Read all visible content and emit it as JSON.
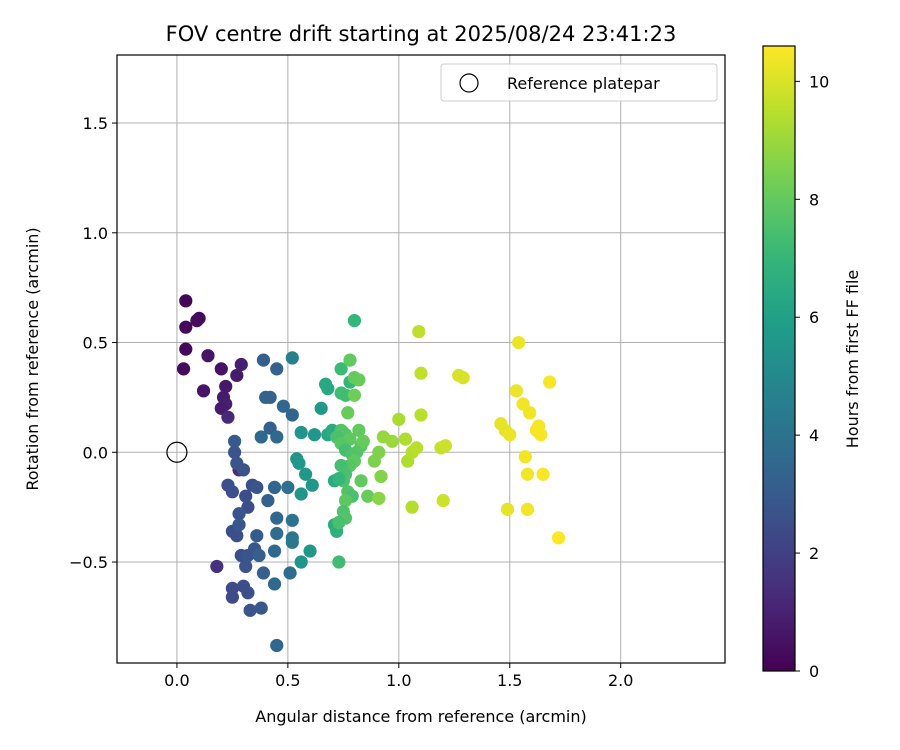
{
  "chart_data": {
    "type": "scatter",
    "title": "FOV centre drift starting at 2025/08/24 23:41:23",
    "xlabel": "Angular distance from reference (arcmin)",
    "ylabel": "Rotation from reference (arcmin)",
    "xlim": [
      -0.27,
      2.47
    ],
    "ylim": [
      -0.96,
      1.81
    ],
    "x_ticks": [
      0.0,
      0.5,
      1.0,
      1.5,
      2.0
    ],
    "x_tick_labels": [
      "0.0",
      "0.5",
      "1.0",
      "1.5",
      "2.0"
    ],
    "y_ticks": [
      -0.5,
      0.0,
      0.5,
      1.0,
      1.5
    ],
    "y_tick_labels": [
      "−0.5",
      "0.0",
      "0.5",
      "1.0",
      "1.5"
    ],
    "grid": true,
    "legend": {
      "placement": "top-right",
      "entries": [
        {
          "label": "Reference platepar",
          "marker": "open-circle"
        }
      ]
    },
    "reference_point": {
      "x": 0.0,
      "y": 0.0
    },
    "colorbar": {
      "label": "Hours from first FF file",
      "colormap": "viridis",
      "range": [
        0,
        10.6
      ],
      "ticks": [
        0,
        2,
        4,
        6,
        8,
        10
      ],
      "tick_labels": [
        "0",
        "2",
        "4",
        "6",
        "8",
        "10"
      ]
    },
    "points": [
      [
        0.04,
        0.69,
        0.1
      ],
      [
        0.04,
        0.57,
        0.2
      ],
      [
        0.1,
        0.61,
        0.3
      ],
      [
        0.09,
        0.6,
        0.3
      ],
      [
        0.04,
        0.47,
        0.2
      ],
      [
        0.03,
        0.38,
        0.3
      ],
      [
        0.14,
        0.44,
        0.6
      ],
      [
        0.2,
        0.38,
        0.5
      ],
      [
        0.12,
        0.28,
        0.6
      ],
      [
        0.22,
        0.3,
        0.7
      ],
      [
        0.27,
        0.35,
        0.8
      ],
      [
        0.29,
        0.4,
        0.9
      ],
      [
        0.21,
        0.25,
        0.8
      ],
      [
        0.22,
        0.22,
        0.9
      ],
      [
        0.2,
        0.2,
        0.8
      ],
      [
        0.23,
        0.16,
        1.2
      ],
      [
        0.28,
        -0.08,
        1.3
      ],
      [
        0.18,
        -0.52,
        1.5
      ],
      [
        0.39,
        0.42,
        3.2
      ],
      [
        0.45,
        0.38,
        3.3
      ],
      [
        0.4,
        0.25,
        3.4
      ],
      [
        0.42,
        0.25,
        3.3
      ],
      [
        0.52,
        0.17,
        3.4
      ],
      [
        0.48,
        0.21,
        3.5
      ],
      [
        0.42,
        0.11,
        3.2
      ],
      [
        0.45,
        0.07,
        3.6
      ],
      [
        0.38,
        0.07,
        3.6
      ],
      [
        0.26,
        0.05,
        3.0
      ],
      [
        0.26,
        0.0,
        2.8
      ],
      [
        0.27,
        -0.05,
        2.8
      ],
      [
        0.3,
        -0.08,
        2.7
      ],
      [
        0.34,
        -0.15,
        2.6
      ],
      [
        0.36,
        -0.16,
        2.8
      ],
      [
        0.23,
        -0.15,
        2.6
      ],
      [
        0.25,
        -0.18,
        2.6
      ],
      [
        0.31,
        -0.2,
        2.5
      ],
      [
        0.32,
        -0.25,
        2.5
      ],
      [
        0.41,
        -0.22,
        3.2
      ],
      [
        0.44,
        -0.16,
        3.5
      ],
      [
        0.28,
        -0.28,
        2.8
      ],
      [
        0.25,
        -0.36,
        2.5
      ],
      [
        0.27,
        -0.38,
        2.6
      ],
      [
        0.28,
        -0.33,
        2.9
      ],
      [
        0.36,
        -0.38,
        3.0
      ],
      [
        0.29,
        -0.47,
        2.6
      ],
      [
        0.32,
        -0.47,
        2.8
      ],
      [
        0.35,
        -0.44,
        2.9
      ],
      [
        0.37,
        -0.47,
        3.2
      ],
      [
        0.31,
        -0.52,
        2.8
      ],
      [
        0.39,
        -0.55,
        3.2
      ],
      [
        0.44,
        -0.45,
        3.6
      ],
      [
        0.45,
        -0.37,
        3.7
      ],
      [
        0.45,
        -0.3,
        3.5
      ],
      [
        0.5,
        -0.16,
        3.9
      ],
      [
        0.25,
        -0.62,
        2.4
      ],
      [
        0.25,
        -0.66,
        2.4
      ],
      [
        0.3,
        -0.61,
        2.5
      ],
      [
        0.32,
        -0.64,
        2.6
      ],
      [
        0.33,
        -0.72,
        2.8
      ],
      [
        0.38,
        -0.71,
        2.9
      ],
      [
        0.44,
        -0.6,
        3.6
      ],
      [
        0.51,
        -0.55,
        3.7
      ],
      [
        0.45,
        -0.88,
        3.5
      ],
      [
        0.52,
        -0.31,
        4.0
      ],
      [
        0.52,
        -0.39,
        4.1
      ],
      [
        0.52,
        -0.41,
        4.2
      ],
      [
        0.52,
        0.43,
        4.6
      ],
      [
        0.65,
        0.2,
        5.6
      ],
      [
        0.56,
        0.09,
        5.5
      ],
      [
        0.62,
        0.08,
        5.6
      ],
      [
        0.54,
        -0.03,
        5.4
      ],
      [
        0.55,
        -0.05,
        5.6
      ],
      [
        0.58,
        -0.1,
        5.6
      ],
      [
        0.56,
        -0.19,
        5.5
      ],
      [
        0.61,
        -0.15,
        5.6
      ],
      [
        0.56,
        -0.5,
        5.5
      ],
      [
        0.6,
        -0.45,
        5.6
      ],
      [
        0.67,
        0.31,
        6.4
      ],
      [
        0.68,
        0.29,
        6.3
      ],
      [
        0.68,
        0.08,
        6.3
      ],
      [
        0.7,
        0.1,
        6.5
      ],
      [
        0.72,
        0.09,
        6.4
      ],
      [
        0.71,
        -0.13,
        6.5
      ],
      [
        0.71,
        -0.33,
        6.6
      ],
      [
        0.72,
        -0.36,
        6.7
      ],
      [
        0.8,
        0.6,
        7.0
      ],
      [
        0.74,
        0.38,
        7.2
      ],
      [
        0.78,
        0.32,
        7.0
      ],
      [
        0.74,
        0.27,
        7.3
      ],
      [
        0.76,
        0.26,
        7.3
      ],
      [
        0.78,
        0.42,
        8.0
      ],
      [
        0.8,
        0.34,
        8.0
      ],
      [
        0.82,
        0.33,
        8.1
      ],
      [
        0.8,
        0.26,
        8.2
      ],
      [
        0.77,
        0.18,
        8.1
      ],
      [
        0.74,
        0.1,
        7.6
      ],
      [
        0.75,
        0.09,
        7.8
      ],
      [
        0.76,
        0.08,
        7.7
      ],
      [
        0.72,
        0.07,
        7.5
      ],
      [
        0.78,
        0.06,
        7.9
      ],
      [
        0.74,
        0.04,
        7.8
      ],
      [
        0.76,
        0.01,
        7.4
      ],
      [
        0.79,
        -0.01,
        7.6
      ],
      [
        0.81,
        0.0,
        7.7
      ],
      [
        0.83,
        0.03,
        7.8
      ],
      [
        0.82,
        0.1,
        8.0
      ],
      [
        0.84,
        0.05,
        8.1
      ],
      [
        0.8,
        -0.04,
        7.9
      ],
      [
        0.78,
        -0.06,
        7.8
      ],
      [
        0.74,
        -0.06,
        7.4
      ],
      [
        0.76,
        -0.1,
        7.5
      ],
      [
        0.75,
        -0.13,
        7.6
      ],
      [
        0.73,
        -0.12,
        7.0
      ],
      [
        0.77,
        -0.18,
        7.7
      ],
      [
        0.79,
        -0.2,
        7.5
      ],
      [
        0.83,
        -0.13,
        8.0
      ],
      [
        0.86,
        -0.2,
        8.1
      ],
      [
        0.76,
        -0.22,
        7.9
      ],
      [
        0.75,
        -0.27,
        7.6
      ],
      [
        0.76,
        -0.3,
        7.7
      ],
      [
        0.73,
        -0.32,
        7.5
      ],
      [
        0.73,
        -0.5,
        7.3
      ],
      [
        0.89,
        -0.04,
        8.5
      ],
      [
        0.91,
        0.0,
        8.5
      ],
      [
        0.92,
        -0.11,
        8.6
      ],
      [
        0.91,
        -0.21,
        8.7
      ],
      [
        0.93,
        0.07,
        8.9
      ],
      [
        0.97,
        0.05,
        9.0
      ],
      [
        1.0,
        0.15,
        9.2
      ],
      [
        1.03,
        0.06,
        9.3
      ],
      [
        1.04,
        -0.04,
        9.3
      ],
      [
        1.06,
        0.0,
        9.4
      ],
      [
        1.08,
        0.02,
        9.5
      ],
      [
        1.09,
        0.55,
        9.6
      ],
      [
        1.1,
        0.36,
        9.6
      ],
      [
        1.1,
        0.17,
        9.5
      ],
      [
        1.06,
        -0.25,
        9.4
      ],
      [
        1.19,
        0.02,
        9.7
      ],
      [
        1.21,
        0.03,
        9.8
      ],
      [
        1.2,
        -0.22,
        9.8
      ],
      [
        1.27,
        0.35,
        10.0
      ],
      [
        1.29,
        0.34,
        10.0
      ],
      [
        1.46,
        0.13,
        10.2
      ],
      [
        1.48,
        0.1,
        10.2
      ],
      [
        1.5,
        0.08,
        10.3
      ],
      [
        1.49,
        -0.26,
        10.2
      ],
      [
        1.53,
        0.28,
        10.3
      ],
      [
        1.54,
        0.5,
        10.3
      ],
      [
        1.56,
        0.22,
        10.4
      ],
      [
        1.59,
        0.18,
        10.4
      ],
      [
        1.57,
        -0.02,
        10.4
      ],
      [
        1.58,
        -0.1,
        10.4
      ],
      [
        1.58,
        -0.26,
        10.4
      ],
      [
        1.63,
        0.12,
        10.5
      ],
      [
        1.62,
        0.1,
        10.5
      ],
      [
        1.64,
        0.08,
        10.5
      ],
      [
        1.65,
        -0.1,
        10.5
      ],
      [
        1.68,
        0.32,
        10.5
      ],
      [
        1.72,
        -0.39,
        10.6
      ]
    ]
  }
}
